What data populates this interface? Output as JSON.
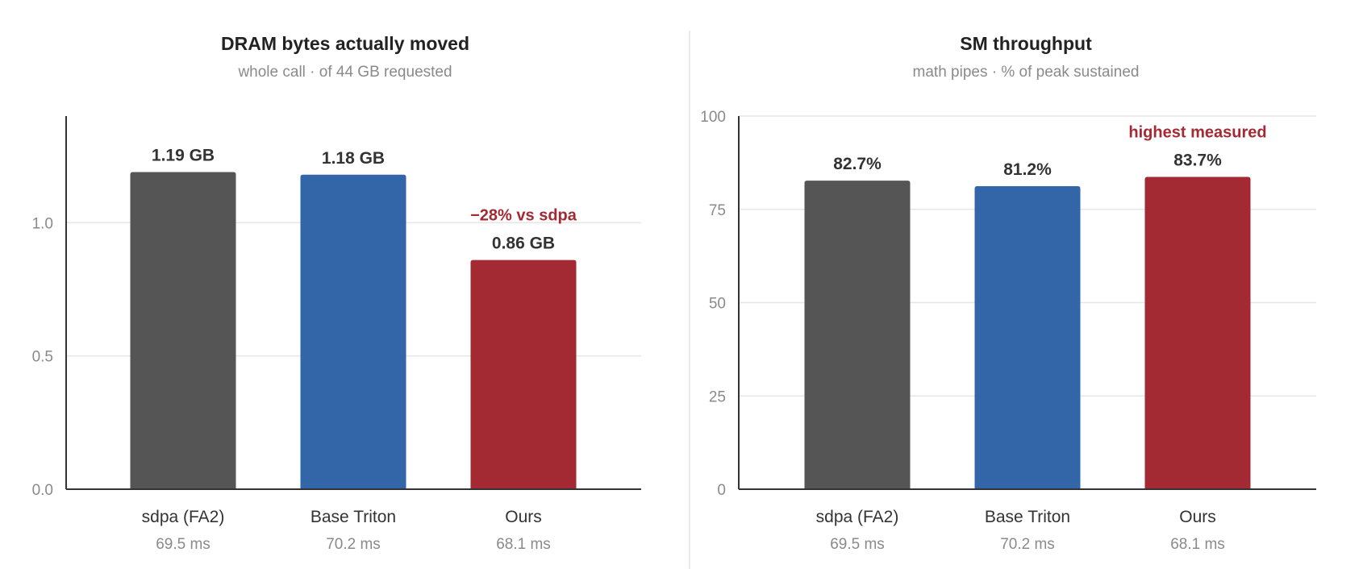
{
  "chart_data": [
    {
      "type": "bar",
      "title": "DRAM bytes actually moved",
      "subtitle": "whole call · of 44 GB requested",
      "ylim": [
        0,
        1.4
      ],
      "ytick_values": [
        0.0,
        0.5,
        1.0
      ],
      "ytick_labels": [
        "0.0",
        "0.5",
        "1.0"
      ],
      "grid": true,
      "categories": [
        "sdpa (FA2)",
        "Base Triton",
        "Ours"
      ],
      "category_sublabels": [
        "69.5 ms",
        "70.2 ms",
        "68.1 ms"
      ],
      "values": [
        1.19,
        1.18,
        0.86
      ],
      "value_labels": [
        "1.19 GB",
        "1.18 GB",
        "0.86 GB"
      ],
      "colors": [
        "#555555",
        "#3366a8",
        "#a32a33"
      ],
      "annotations": [
        {
          "category_index": 2,
          "text": "−28% vs sdpa",
          "color": "#a32a33"
        }
      ]
    },
    {
      "type": "bar",
      "title": "SM throughput",
      "subtitle": "math pipes · % of peak sustained",
      "ylim": [
        0,
        100
      ],
      "ytick_values": [
        0,
        25,
        50,
        75,
        100
      ],
      "ytick_labels": [
        "0",
        "25",
        "50",
        "75",
        "100"
      ],
      "grid": true,
      "categories": [
        "sdpa (FA2)",
        "Base Triton",
        "Ours"
      ],
      "category_sublabels": [
        "69.5 ms",
        "70.2 ms",
        "68.1 ms"
      ],
      "values": [
        82.7,
        81.2,
        83.7
      ],
      "value_labels": [
        "82.7%",
        "81.2%",
        "83.7%"
      ],
      "colors": [
        "#555555",
        "#3366a8",
        "#a32a33"
      ],
      "annotations": [
        {
          "category_index": 2,
          "text": "highest measured",
          "color": "#a32a33"
        }
      ]
    }
  ]
}
